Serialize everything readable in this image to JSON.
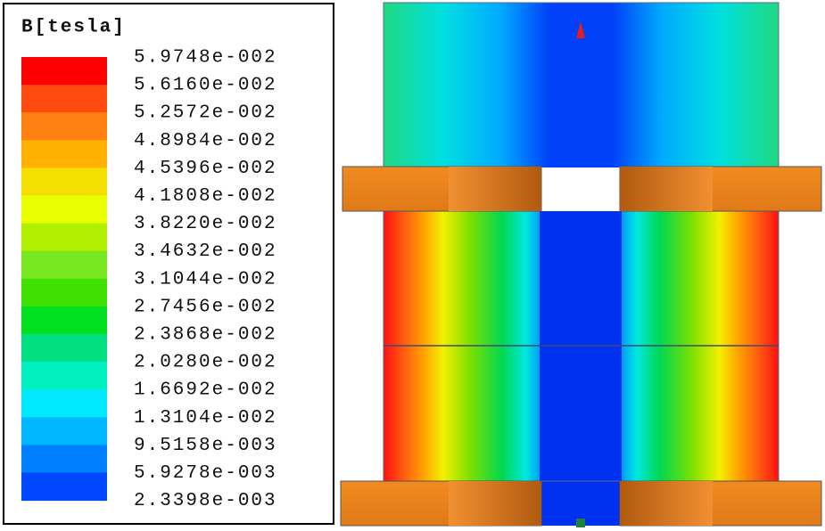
{
  "legend": {
    "title": "B[tesla]",
    "labels": [
      "5.9748e-002",
      "5.6160e-002",
      "5.2572e-002",
      "4.8984e-002",
      "4.5396e-002",
      "4.1808e-002",
      "3.8220e-002",
      "3.4632e-002",
      "3.1044e-002",
      "2.7456e-002",
      "2.3868e-002",
      "2.0280e-002",
      "1.6692e-002",
      "1.3104e-002",
      "9.5158e-003",
      "5.9278e-003",
      "2.3398e-003"
    ]
  }
}
